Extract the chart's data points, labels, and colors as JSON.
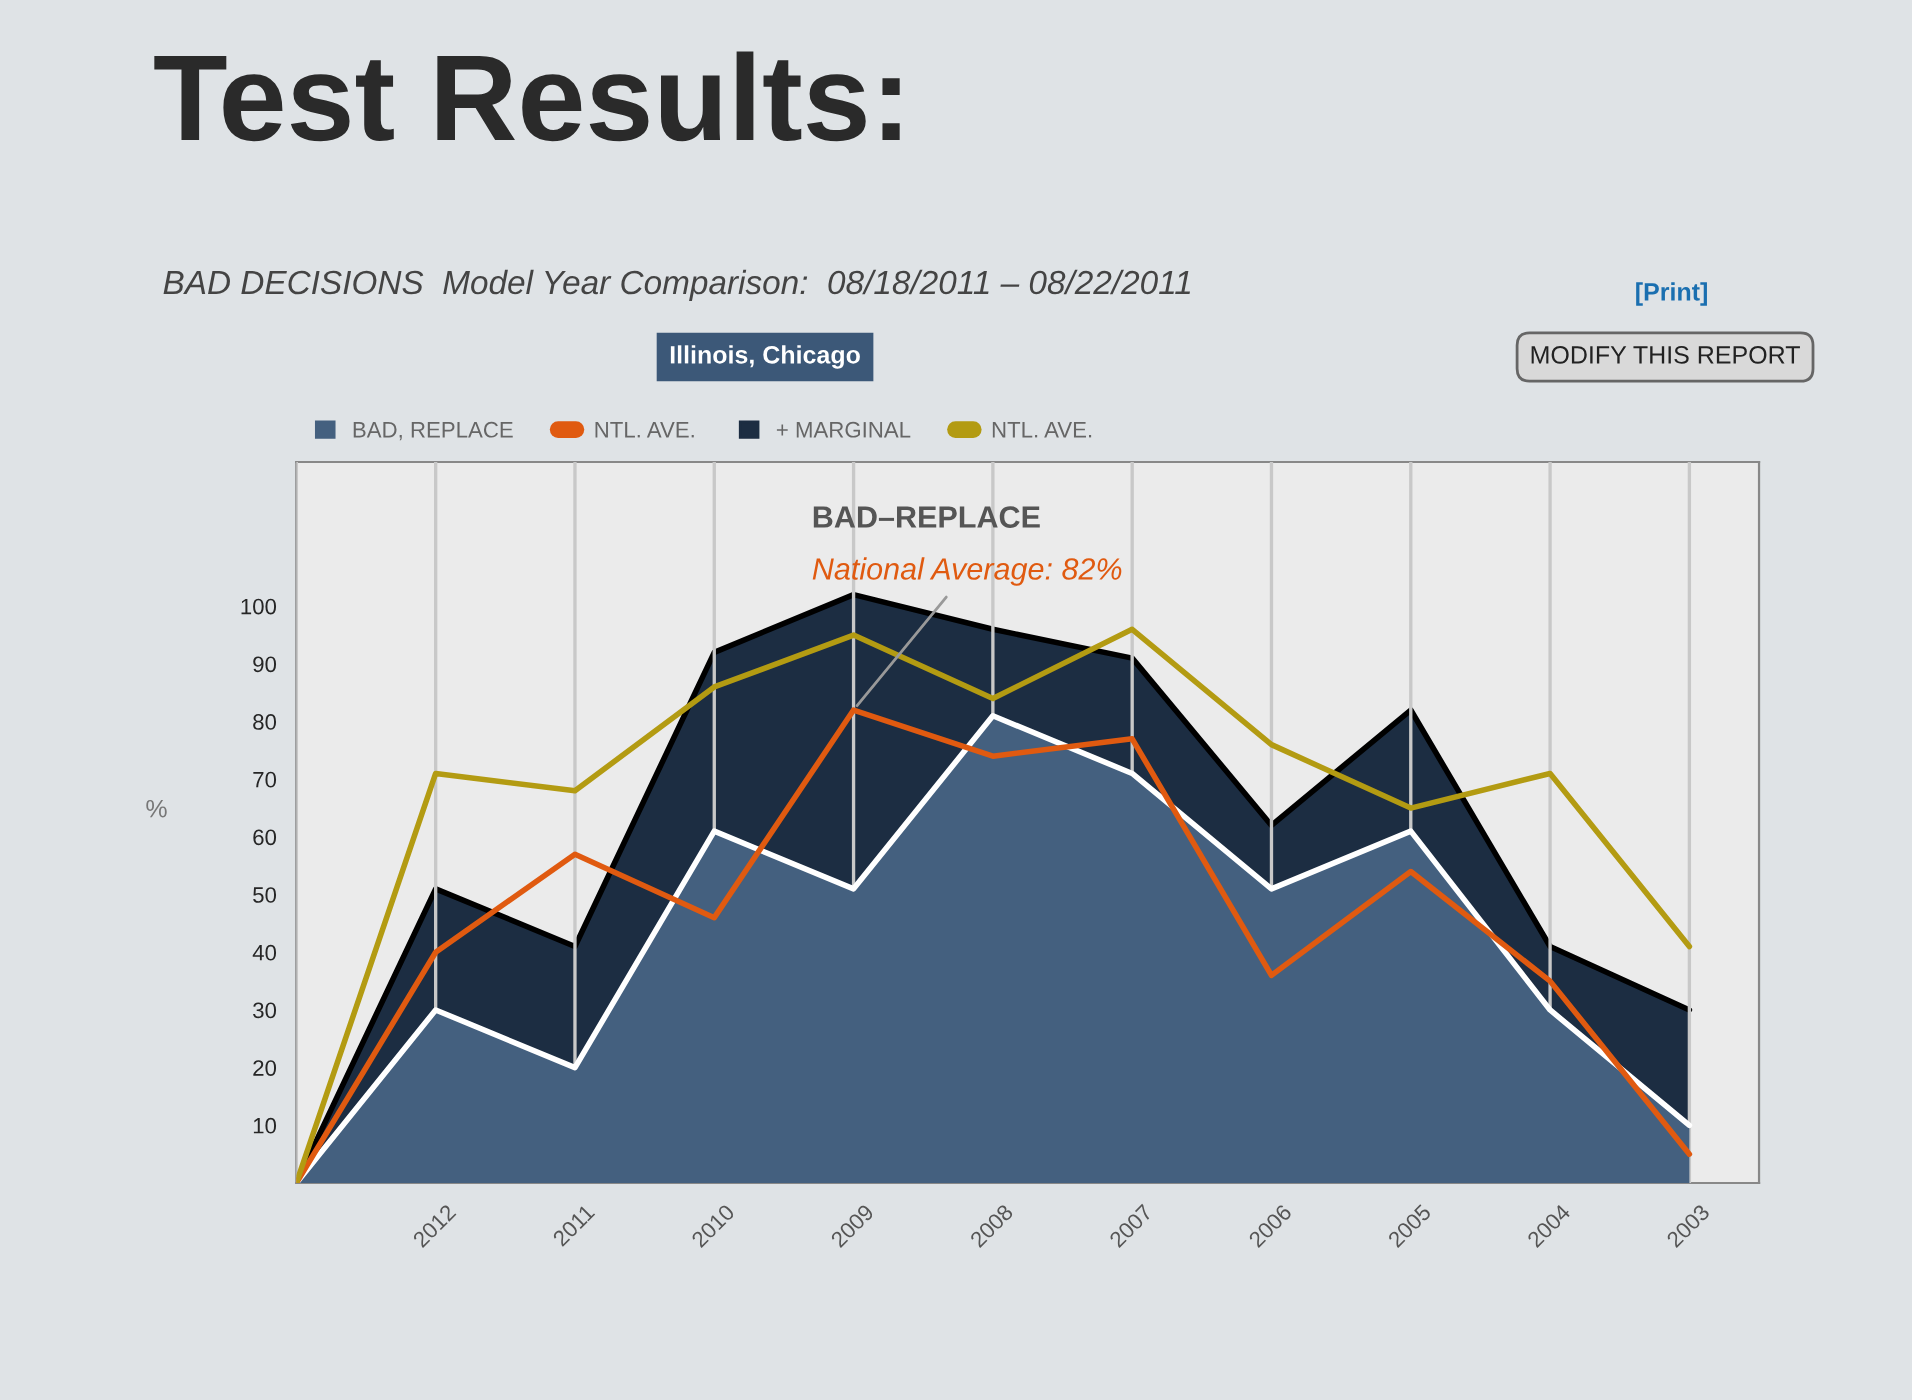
{
  "chart_data": {
    "type": "area",
    "title": "Test Results:",
    "subtitle": "BAD DECISIONS  Model Year Comparison:  08/18/2011 – 08/22/2011",
    "ylabel": "%",
    "categories": [
      null,
      "2012",
      "2011",
      "2010",
      "2009",
      "2008",
      "2007",
      "2006",
      "2005",
      "2004",
      "2003"
    ],
    "series": [
      {
        "name": "BAD, REPLACE",
        "color": "#44607f",
        "values": [
          0,
          30,
          20,
          61,
          51,
          81,
          71,
          51,
          61,
          30,
          10
        ]
      },
      {
        "name": "NTL. AVE.",
        "type": "line",
        "color": "#e05a10",
        "values": [
          0,
          40,
          57,
          46,
          82,
          74,
          77,
          36,
          54,
          35,
          5
        ]
      },
      {
        "name": "+ MARGINAL",
        "color": "#1c2d42",
        "values": [
          0,
          51,
          41,
          92,
          102,
          96,
          91,
          62,
          82,
          41,
          30
        ]
      },
      {
        "name": "NTL. AVE.",
        "type": "line",
        "color": "#b39b12",
        "values": [
          0,
          71,
          68,
          86,
          95,
          84,
          96,
          76,
          65,
          71,
          41
        ]
      }
    ],
    "ylim": [
      0,
      125
    ],
    "yticks": [
      10,
      20,
      30,
      40,
      50,
      60,
      70,
      80,
      90,
      100
    ],
    "grid": "x",
    "legend": "top left",
    "annotations": [
      "Illinois, Chicago",
      "MODIFY THIS REPORT",
      "[Print]",
      "BAD–REPLACE",
      {
        "text": "National Average: 82%",
        "x": "2009",
        "y": 82
      }
    ]
  }
}
